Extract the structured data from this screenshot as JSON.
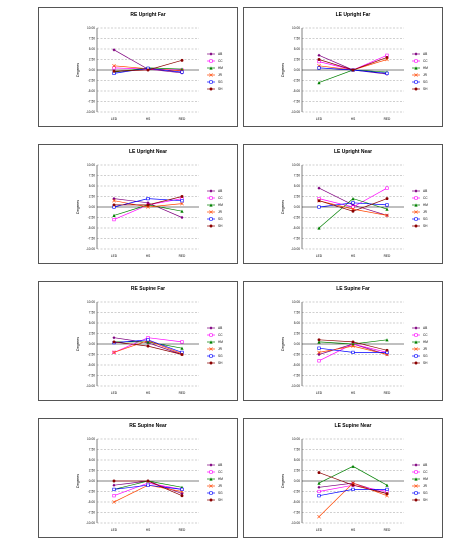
{
  "chart_data": [
    {
      "type": "line",
      "title": "RE Upright Far",
      "ylabel": "Degrees",
      "categories": [
        "LED",
        "HS",
        "RED"
      ],
      "ylim": [
        -10,
        10
      ],
      "yticks": [
        "10.00",
        "7.50",
        "5.00",
        "2.50",
        "0.00",
        "-2.50",
        "-5.00",
        "-7.50",
        "-10.00"
      ],
      "grid": true,
      "legend_position": "right",
      "series": [
        {
          "name": "AB",
          "color": "#7f007f",
          "marker": "diamond",
          "values": [
            4.8,
            0.2,
            -0.7
          ]
        },
        {
          "name": "CC",
          "color": "#ff00ff",
          "marker": "square",
          "values": [
            0.5,
            0.2,
            0.0
          ]
        },
        {
          "name": "HM",
          "color": "#008000",
          "marker": "triangle",
          "values": [
            -0.5,
            0.5,
            0.2
          ]
        },
        {
          "name": "JR",
          "color": "#ff4500",
          "marker": "x",
          "values": [
            1.0,
            0.3,
            -0.2
          ]
        },
        {
          "name": "SG",
          "color": "#0000ff",
          "marker": "square",
          "values": [
            -0.8,
            0.4,
            -0.5
          ]
        },
        {
          "name": "SH",
          "color": "#8b0000",
          "marker": "circle",
          "values": [
            -0.3,
            0.0,
            2.3
          ]
        }
      ]
    },
    {
      "type": "line",
      "title": "LE Upright Far",
      "ylabel": "Degrees",
      "categories": [
        "LED",
        "HS",
        "RED"
      ],
      "ylim": [
        -10,
        10
      ],
      "yticks": [
        "10.00",
        "7.50",
        "5.00",
        "2.50",
        "0.00",
        "-2.50",
        "-5.00",
        "-7.50",
        "-10.00"
      ],
      "grid": true,
      "legend_position": "right",
      "series": [
        {
          "name": "AB",
          "color": "#7f007f",
          "marker": "diamond",
          "values": [
            3.5,
            0.0,
            -1.0
          ]
        },
        {
          "name": "CC",
          "color": "#ff00ff",
          "marker": "square",
          "values": [
            2.0,
            0.0,
            3.5
          ]
        },
        {
          "name": "HM",
          "color": "#008000",
          "marker": "triangle",
          "values": [
            -3.0,
            0.0,
            -0.5
          ]
        },
        {
          "name": "JR",
          "color": "#ff4500",
          "marker": "x",
          "values": [
            1.0,
            0.0,
            2.5
          ]
        },
        {
          "name": "SG",
          "color": "#0000ff",
          "marker": "square",
          "values": [
            0.5,
            0.0,
            -0.8
          ]
        },
        {
          "name": "SH",
          "color": "#8b0000",
          "marker": "circle",
          "values": [
            2.5,
            0.0,
            3.0
          ]
        }
      ]
    },
    {
      "type": "line",
      "title": "LE Upright Near",
      "ylabel": "Degrees",
      "categories": [
        "LED",
        "HS",
        "RED"
      ],
      "ylim": [
        -10,
        10
      ],
      "yticks": [
        "10.00",
        "7.50",
        "5.00",
        "2.50",
        "0.00",
        "-2.50",
        "-5.00",
        "-7.50",
        "-10.00"
      ],
      "grid": true,
      "legend_position": "right",
      "series": [
        {
          "name": "AB",
          "color": "#7f007f",
          "marker": "diamond",
          "values": [
            2.0,
            1.0,
            -2.5
          ]
        },
        {
          "name": "CC",
          "color": "#ff00ff",
          "marker": "square",
          "values": [
            -3.0,
            0.5,
            2.0
          ]
        },
        {
          "name": "HM",
          "color": "#008000",
          "marker": "triangle",
          "values": [
            -2.0,
            0.5,
            -1.0
          ]
        },
        {
          "name": "JR",
          "color": "#ff4500",
          "marker": "x",
          "values": [
            1.5,
            0.0,
            0.8
          ]
        },
        {
          "name": "SG",
          "color": "#0000ff",
          "marker": "square",
          "values": [
            0.0,
            2.0,
            1.5
          ]
        },
        {
          "name": "SH",
          "color": "#8b0000",
          "marker": "circle",
          "values": [
            0.5,
            0.5,
            2.5
          ]
        }
      ]
    },
    {
      "type": "line",
      "title": "LE Upright Near",
      "ylabel": "Degrees",
      "categories": [
        "LED",
        "HS",
        "RED"
      ],
      "ylim": [
        -10,
        10
      ],
      "yticks": [
        "10.00",
        "7.50",
        "5.00",
        "2.50",
        "0.00",
        "-2.50",
        "-5.00",
        "-7.50",
        "-10.00"
      ],
      "grid": true,
      "legend_position": "right",
      "series": [
        {
          "name": "AB",
          "color": "#7f007f",
          "marker": "diamond",
          "values": [
            4.5,
            0.5,
            -2.0
          ]
        },
        {
          "name": "CC",
          "color": "#ff00ff",
          "marker": "square",
          "values": [
            2.0,
            0.0,
            4.5
          ]
        },
        {
          "name": "HM",
          "color": "#008000",
          "marker": "triangle",
          "values": [
            -5.0,
            2.0,
            -0.5
          ]
        },
        {
          "name": "JR",
          "color": "#ff4500",
          "marker": "x",
          "values": [
            1.5,
            -0.5,
            -2.0
          ]
        },
        {
          "name": "SG",
          "color": "#0000ff",
          "marker": "square",
          "values": [
            0.0,
            1.0,
            0.5
          ]
        },
        {
          "name": "SH",
          "color": "#8b0000",
          "marker": "circle",
          "values": [
            1.5,
            -1.0,
            2.0
          ]
        }
      ]
    },
    {
      "type": "line",
      "title": "RE Supine Far",
      "ylabel": "Degrees",
      "categories": [
        "LED",
        "HS",
        "RED"
      ],
      "ylim": [
        -10,
        10
      ],
      "yticks": [
        "10.00",
        "7.50",
        "5.00",
        "2.50",
        "0.00",
        "-2.50",
        "-5.00",
        "-7.50",
        "-10.00"
      ],
      "grid": true,
      "legend_position": "right",
      "series": [
        {
          "name": "AB",
          "color": "#7f007f",
          "marker": "diamond",
          "values": [
            1.5,
            0.3,
            -2.5
          ]
        },
        {
          "name": "CC",
          "color": "#ff00ff",
          "marker": "square",
          "values": [
            -2.0,
            1.5,
            0.5
          ]
        },
        {
          "name": "HM",
          "color": "#008000",
          "marker": "triangle",
          "values": [
            0.5,
            0.5,
            -1.0
          ]
        },
        {
          "name": "JR",
          "color": "#ff4500",
          "marker": "x",
          "values": [
            -2.0,
            0.8,
            -2.3
          ]
        },
        {
          "name": "SG",
          "color": "#0000ff",
          "marker": "square",
          "values": [
            0.3,
            1.0,
            -2.0
          ]
        },
        {
          "name": "SH",
          "color": "#8b0000",
          "marker": "circle",
          "values": [
            0.5,
            -0.5,
            -2.5
          ]
        }
      ]
    },
    {
      "type": "line",
      "title": "LE Supine Far",
      "ylabel": "Degrees",
      "categories": [
        "LED",
        "HS",
        "RED"
      ],
      "ylim": [
        -10,
        10
      ],
      "yticks": [
        "10.00",
        "7.50",
        "5.00",
        "2.50",
        "0.00",
        "-2.50",
        "-5.00",
        "-7.50",
        "-10.00"
      ],
      "grid": true,
      "legend_position": "right",
      "series": [
        {
          "name": "AB",
          "color": "#7f007f",
          "marker": "diamond",
          "values": [
            -2.5,
            0.0,
            -2.5
          ]
        },
        {
          "name": "CC",
          "color": "#ff00ff",
          "marker": "square",
          "values": [
            -4.0,
            0.0,
            -2.0
          ]
        },
        {
          "name": "HM",
          "color": "#008000",
          "marker": "triangle",
          "values": [
            0.5,
            0.0,
            1.0
          ]
        },
        {
          "name": "JR",
          "color": "#ff4500",
          "marker": "x",
          "values": [
            -2.0,
            -0.5,
            -2.5
          ]
        },
        {
          "name": "SG",
          "color": "#0000ff",
          "marker": "square",
          "values": [
            -1.0,
            -2.0,
            -2.0
          ]
        },
        {
          "name": "SH",
          "color": "#8b0000",
          "marker": "circle",
          "values": [
            1.0,
            0.5,
            -1.5
          ]
        }
      ]
    },
    {
      "type": "line",
      "title": "RE Supine Near",
      "ylabel": "Degrees",
      "categories": [
        "LED",
        "HS",
        "RED"
      ],
      "ylim": [
        -10,
        10
      ],
      "yticks": [
        "10.00",
        "7.50",
        "5.00",
        "2.50",
        "0.00",
        "-2.50",
        "-5.00",
        "-7.50",
        "-10.00"
      ],
      "grid": true,
      "legend_position": "right",
      "series": [
        {
          "name": "AB",
          "color": "#7f007f",
          "marker": "diamond",
          "values": [
            -1.0,
            0.0,
            -3.0
          ]
        },
        {
          "name": "CC",
          "color": "#ff00ff",
          "marker": "square",
          "values": [
            -3.5,
            -0.5,
            -2.0
          ]
        },
        {
          "name": "HM",
          "color": "#008000",
          "marker": "triangle",
          "values": [
            -2.0,
            0.0,
            -1.5
          ]
        },
        {
          "name": "JR",
          "color": "#ff4500",
          "marker": "x",
          "values": [
            -5.0,
            -1.0,
            -2.5
          ]
        },
        {
          "name": "SG",
          "color": "#0000ff",
          "marker": "square",
          "values": [
            -2.0,
            -1.0,
            -2.0
          ]
        },
        {
          "name": "SH",
          "color": "#8b0000",
          "marker": "circle",
          "values": [
            0.0,
            0.0,
            -3.5
          ]
        }
      ]
    },
    {
      "type": "line",
      "title": "LE Supine Near",
      "ylabel": "Degrees",
      "categories": [
        "LED",
        "HS",
        "RED"
      ],
      "ylim": [
        -10,
        10
      ],
      "yticks": [
        "10.00",
        "7.50",
        "5.00",
        "2.50",
        "0.00",
        "-2.50",
        "-5.00",
        "-7.50",
        "-10.00"
      ],
      "grid": true,
      "legend_position": "right",
      "series": [
        {
          "name": "AB",
          "color": "#7f007f",
          "marker": "diamond",
          "values": [
            -1.5,
            -0.5,
            -3.0
          ]
        },
        {
          "name": "CC",
          "color": "#ff00ff",
          "marker": "square",
          "values": [
            -2.5,
            -1.0,
            -2.5
          ]
        },
        {
          "name": "HM",
          "color": "#008000",
          "marker": "triangle",
          "values": [
            -0.5,
            3.5,
            -1.0
          ]
        },
        {
          "name": "JR",
          "color": "#ff4500",
          "marker": "x",
          "values": [
            -8.5,
            -0.5,
            -3.5
          ]
        },
        {
          "name": "SG",
          "color": "#0000ff",
          "marker": "square",
          "values": [
            -3.5,
            -2.0,
            -2.0
          ]
        },
        {
          "name": "SH",
          "color": "#8b0000",
          "marker": "circle",
          "values": [
            2.0,
            -1.0,
            -3.0
          ]
        }
      ]
    }
  ]
}
